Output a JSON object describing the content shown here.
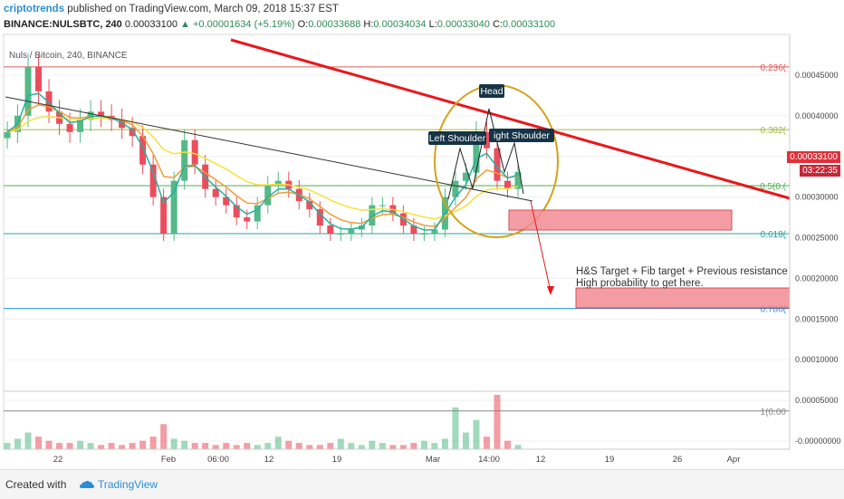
{
  "header": {
    "brand": "criptotrends",
    "published": "published on TradingView.com, March 09, 2018 15:37 EST",
    "symbol": "BINANCE:NULSBTC, 240",
    "last": "0.00033100",
    "change": "+0.00001634 (+5.19%)",
    "o_label": "O:",
    "o": "0.00033688",
    "h_label": "H:",
    "h": "0.00034034",
    "l_label": "L:",
    "l": "0.00033040",
    "c_label": "C:",
    "c": "0.00033100"
  },
  "legend": "Nuls / Bitcoin, 240, BINANCE",
  "price_tag": "0.00033100",
  "countdown": "03:22:35",
  "annotations": {
    "head": "Head",
    "left_shoulder": "Left Shoulder",
    "right_shoulder": "ight Shoulder",
    "target_line1": "H&S Target + Fib target + Previous resistance",
    "target_line2": "High probability to get here."
  },
  "footer": {
    "created": "Created with",
    "brand": "TradingView"
  },
  "colors": {
    "up": "#53b987",
    "down": "#eb4d5c",
    "trendline": "#e8181c",
    "fib_0236": "#e05a5a",
    "fib_0382": "#a8b840",
    "fib_05": "#4caf50",
    "fib_0618": "#26a69a",
    "fib_0786": "#2196f3",
    "fib_1": "#888888",
    "ema_yellow": "#f5e23a",
    "ema_orange": "#f29c38",
    "ema_teal": "#26b0a0",
    "circle": "#d4a21a",
    "target_box": "#f28b94"
  },
  "chart_data": {
    "type": "candlestick",
    "title": "Nuls / Bitcoin, 240, BINANCE",
    "x_ticks": [
      "22",
      "Feb",
      "06:00",
      "12",
      "19",
      "Mar",
      "14:00",
      "12",
      "19",
      "26",
      "Apr"
    ],
    "y_ticks": [
      "0.00045000",
      "0.00040000",
      "0.00035000",
      "0.00030000",
      "0.00025000",
      "0.00020000",
      "0.00015000",
      "0.00010000",
      "0.00005000",
      "-0.00000000"
    ],
    "ylim": [
      -1e-05,
      0.0005
    ],
    "fib_levels": [
      {
        "label": "0.236(",
        "value": 0.00046
      },
      {
        "label": "0.382(",
        "value": 0.000383
      },
      {
        "label": "0.5(0.(",
        "value": 0.000314
      },
      {
        "label": "0.618(",
        "value": 0.000255
      },
      {
        "label": "0.786(",
        "value": 0.000163
      },
      {
        "label": "1(0.00",
        "value": 3.7e-05
      }
    ],
    "price_series_approx": [
      0.00038,
      0.0004,
      0.00046,
      0.00043,
      0.000405,
      0.00039,
      0.00038,
      0.000395,
      0.000405,
      0.0004,
      0.000395,
      0.000385,
      0.000375,
      0.00034,
      0.0003,
      0.000255,
      0.00032,
      0.00037,
      0.00034,
      0.00031,
      0.0003,
      0.00029,
      0.000275,
      0.00027,
      0.00029,
      0.000315,
      0.00032,
      0.00031,
      0.000295,
      0.000285,
      0.000265,
      0.000255,
      0.000255,
      0.00026,
      0.000265,
      0.00029,
      0.00029,
      0.00028,
      0.000265,
      0.000255,
      0.000255,
      0.00026,
      0.0003,
      0.00032,
      0.00033,
      0.00038,
      0.00036,
      0.00032,
      0.00031,
      0.000331
    ],
    "volume_approx": [
      3,
      5,
      8,
      6,
      4,
      3,
      3,
      4,
      3,
      2,
      3,
      2,
      3,
      4,
      6,
      12,
      5,
      4,
      3,
      3,
      2,
      3,
      2,
      3,
      2,
      3,
      6,
      4,
      3,
      2,
      2,
      3,
      5,
      3,
      2,
      4,
      3,
      2,
      2,
      3,
      4,
      3,
      5,
      20,
      8,
      14,
      6,
      26,
      4,
      2
    ]
  }
}
